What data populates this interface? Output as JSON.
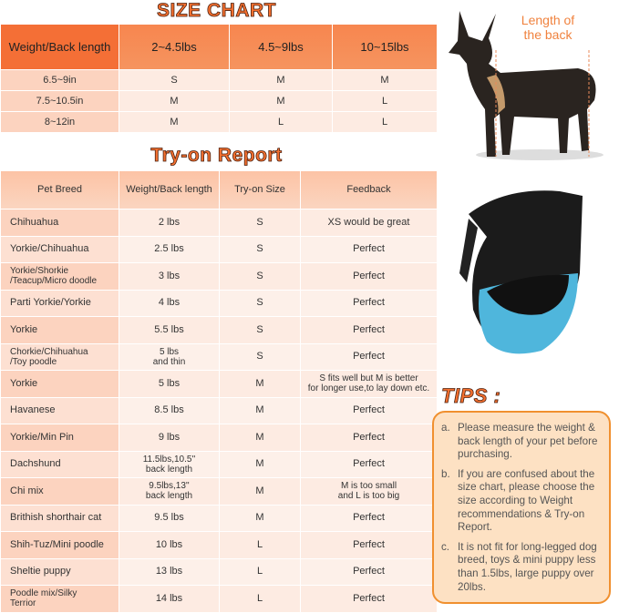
{
  "size_chart": {
    "title": "SIZE CHART",
    "header": [
      "Weight/Back length",
      "2~4.5lbs",
      "4.5~9lbs",
      "10~15lbs"
    ],
    "rows": [
      [
        "6.5~9in",
        "S",
        "M",
        "M"
      ],
      [
        "7.5~10.5in",
        "M",
        "M",
        "L"
      ],
      [
        "8~12in",
        "M",
        "L",
        "L"
      ]
    ]
  },
  "try_on_report": {
    "title": "Try-on Report",
    "header": [
      "Pet Breed",
      "Weight/Back length",
      "Try-on Size",
      "Feedback"
    ],
    "rows": [
      [
        "Chihuahua",
        "2 lbs",
        "S",
        "XS would be great"
      ],
      [
        "Yorkie/Chihuahua",
        "2.5 lbs",
        "S",
        "Perfect"
      ],
      [
        "Yorkie/Shorkie\n/Teacup/Micro doodle",
        "3 lbs",
        "S",
        "Perfect"
      ],
      [
        "Parti Yorkie/Yorkie",
        "4 lbs",
        "S",
        "Perfect"
      ],
      [
        "Yorkie",
        "5.5 lbs",
        "S",
        "Perfect"
      ],
      [
        "Chorkie/Chihuahua\n/Toy poodle",
        "5 lbs\nand thin",
        "S",
        "Perfect"
      ],
      [
        "Yorkie",
        "5 lbs",
        "M",
        "S fits well but M is better\nfor longer use,to lay down etc."
      ],
      [
        "Havanese",
        "8.5 lbs",
        "M",
        "Perfect"
      ],
      [
        "Yorkie/Min Pin",
        "9 lbs",
        "M",
        "Perfect"
      ],
      [
        "Dachshund",
        "11.5lbs,10.5''\nback length",
        "M",
        "Perfect"
      ],
      [
        "Chi mix",
        "9.5lbs,13''\nback length",
        "M",
        "M is too small\nand L is too big"
      ],
      [
        "Brithish shorthair cat",
        "9.5 lbs",
        "M",
        "Perfect"
      ],
      [
        "Shih-Tuz/Mini poodle",
        "10 lbs",
        "L",
        "Perfect"
      ],
      [
        "Sheltie puppy",
        "13 lbs",
        "L",
        "Perfect"
      ],
      [
        "Poodle mix/Silky\nTerrior",
        "14 lbs",
        "L",
        "Perfect"
      ]
    ]
  },
  "dog_photo": {
    "annotation": "Length of\nthe back"
  },
  "tips": {
    "title": "TIPS :",
    "items": [
      {
        "marker": "a.",
        "text": "Please measure the weight & back length of your pet before purchasing."
      },
      {
        "marker": "b.",
        "text": "If you are confused about the size chart, please choose the size according to Weight recommendations & Try-on Report."
      },
      {
        "marker": "c.",
        "text": "It is not fit for long-legged dog breed, toys & mini puppy less than 1.5lbs, large puppy over 20lbs."
      }
    ]
  }
}
